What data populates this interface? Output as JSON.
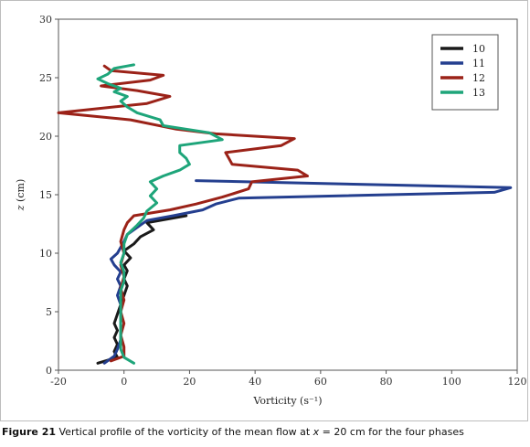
{
  "chart_data": {
    "type": "line",
    "xlabel": "Vorticity (s⁻¹)",
    "ylabel_var": "z",
    "ylabel_unit": " (cm)",
    "xlim": [
      -20,
      120
    ],
    "ylim": [
      0,
      30
    ],
    "x_ticks": [
      -20,
      0,
      20,
      40,
      60,
      80,
      100,
      120
    ],
    "y_ticks": [
      0,
      5,
      10,
      15,
      20,
      25,
      30
    ],
    "grid": false,
    "legend_position": "top-right",
    "series": [
      {
        "name": "10",
        "color": "#1a1a1a",
        "points": [
          [
            -8,
            0.6
          ],
          [
            -2,
            1.1
          ],
          [
            -3,
            1.6
          ],
          [
            -2,
            2.2
          ],
          [
            -3,
            2.8
          ],
          [
            -2,
            3.4
          ],
          [
            -3,
            4.0
          ],
          [
            -2,
            4.8
          ],
          [
            -1,
            5.6
          ],
          [
            0,
            6.4
          ],
          [
            1,
            7.2
          ],
          [
            0,
            7.8
          ],
          [
            1,
            8.5
          ],
          [
            0,
            9.0
          ],
          [
            2,
            9.6
          ],
          [
            0,
            10.2
          ],
          [
            3,
            10.8
          ],
          [
            5,
            11.4
          ],
          [
            9,
            12.0
          ],
          [
            7,
            12.6
          ],
          [
            19,
            13.2
          ]
        ]
      },
      {
        "name": "11",
        "color": "#243f8f",
        "points": [
          [
            -6,
            0.6
          ],
          [
            -3,
            1.2
          ],
          [
            -2,
            1.8
          ],
          [
            -1,
            2.6
          ],
          [
            -1,
            3.6
          ],
          [
            -1,
            4.6
          ],
          [
            -1,
            5.6
          ],
          [
            -2,
            6.4
          ],
          [
            -1,
            7.2
          ],
          [
            -2,
            7.8
          ],
          [
            -1,
            8.4
          ],
          [
            -3,
            9.0
          ],
          [
            -4,
            9.5
          ],
          [
            -2,
            10.0
          ],
          [
            -1,
            10.5
          ],
          [
            0,
            11.0
          ],
          [
            1,
            11.6
          ],
          [
            4,
            12.2
          ],
          [
            7,
            12.8
          ],
          [
            15,
            13.2
          ],
          [
            24,
            13.7
          ],
          [
            28,
            14.2
          ],
          [
            35,
            14.7
          ],
          [
            113,
            15.2
          ],
          [
            118,
            15.6
          ],
          [
            22,
            16.2
          ]
        ]
      },
      {
        "name": "12",
        "color": "#9b2218",
        "points": [
          [
            -4,
            0.8
          ],
          [
            0,
            1.2
          ],
          [
            0,
            2.0
          ],
          [
            -1,
            3.0
          ],
          [
            0,
            4.0
          ],
          [
            -1,
            5.0
          ],
          [
            0,
            6.0
          ],
          [
            -1,
            7.0
          ],
          [
            0,
            8.0
          ],
          [
            -1,
            9.0
          ],
          [
            0,
            10.0
          ],
          [
            -1,
            11.0
          ],
          [
            0,
            12.0
          ],
          [
            1,
            12.6
          ],
          [
            3,
            13.2
          ],
          [
            14,
            13.7
          ],
          [
            22,
            14.2
          ],
          [
            30,
            14.8
          ],
          [
            38,
            15.5
          ],
          [
            39,
            16.1
          ],
          [
            56,
            16.6
          ],
          [
            53,
            17.1
          ],
          [
            33,
            17.6
          ],
          [
            32,
            18.1
          ],
          [
            31,
            18.6
          ],
          [
            48,
            19.2
          ],
          [
            52,
            19.8
          ],
          [
            28,
            20.2
          ],
          [
            16,
            20.6
          ],
          [
            2,
            21.4
          ],
          [
            -20,
            22.0
          ],
          [
            7,
            22.8
          ],
          [
            14,
            23.4
          ],
          [
            4,
            23.9
          ],
          [
            -7,
            24.3
          ],
          [
            8,
            24.8
          ],
          [
            12,
            25.2
          ],
          [
            -4,
            25.6
          ],
          [
            -6,
            26.0
          ]
        ]
      },
      {
        "name": "13",
        "color": "#1ea57a",
        "points": [
          [
            3,
            0.6
          ],
          [
            0,
            1.1
          ],
          [
            -1,
            1.8
          ],
          [
            -1,
            2.8
          ],
          [
            -1,
            3.8
          ],
          [
            -1,
            4.8
          ],
          [
            -1,
            5.8
          ],
          [
            -1,
            6.8
          ],
          [
            0,
            7.6
          ],
          [
            0,
            8.4
          ],
          [
            -1,
            9.2
          ],
          [
            0,
            10.0
          ],
          [
            0,
            10.8
          ],
          [
            1,
            11.6
          ],
          [
            4,
            12.4
          ],
          [
            6,
            13.0
          ],
          [
            7,
            13.6
          ],
          [
            10,
            14.3
          ],
          [
            8,
            14.9
          ],
          [
            10,
            15.5
          ],
          [
            8,
            16.1
          ],
          [
            12,
            16.6
          ],
          [
            17,
            17.1
          ],
          [
            20,
            17.6
          ],
          [
            19,
            18.1
          ],
          [
            17,
            18.6
          ],
          [
            17,
            19.2
          ],
          [
            30,
            19.7
          ],
          [
            26,
            20.3
          ],
          [
            12,
            20.9
          ],
          [
            11,
            21.4
          ],
          [
            4,
            22.0
          ],
          [
            1,
            22.5
          ],
          [
            -1,
            23.0
          ],
          [
            1,
            23.4
          ],
          [
            -3,
            23.8
          ],
          [
            -1,
            24.1
          ],
          [
            -5,
            24.5
          ],
          [
            -8,
            24.9
          ],
          [
            -5,
            25.3
          ],
          [
            -3,
            25.8
          ],
          [
            1,
            26.0
          ],
          [
            3,
            26.1
          ]
        ]
      }
    ]
  },
  "caption": {
    "label": "Figure 21",
    "text_before": " Vertical profile of the vorticity of the mean flow at ",
    "var": "x",
    "text_after": " = 20 cm for the four phases"
  }
}
